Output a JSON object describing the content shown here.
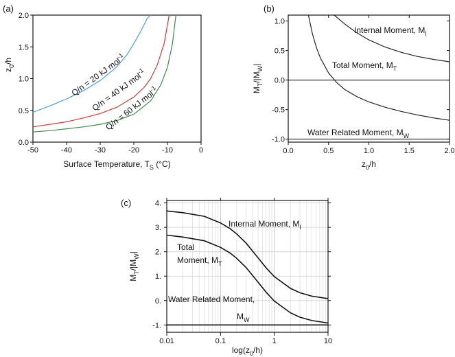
{
  "chart_data": [
    {
      "type": "line",
      "panel_label": "(a)",
      "xlabel": "Surface Temperature, T",
      "xlabel_sub": "S",
      "xlabel_unit": " (°C)",
      "ylabel": "z",
      "ylabel_sub": "0",
      "ylabel_tail": "/h",
      "xlim": [
        -50,
        0
      ],
      "ylim": [
        0,
        2
      ],
      "xticks": [
        -50,
        -40,
        -30,
        -20,
        -10,
        0
      ],
      "xtick_labels": [
        "-50",
        "-40",
        "-30",
        "-20",
        "-10",
        "0"
      ],
      "yticks": [
        0,
        0.5,
        1,
        1.5,
        2
      ],
      "ytick_labels": [
        "0.0",
        "0.5",
        "1.0",
        "1.5",
        "2.0"
      ],
      "series": [
        {
          "name": "Q/n = 20 kJ mol",
          "name_sup": "-1",
          "color": "#4a9fd6",
          "x": [
            -50,
            -45,
            -40,
            -35,
            -30,
            -25,
            -22,
            -20,
            -18,
            -16,
            -15
          ],
          "y": [
            0.47,
            0.57,
            0.68,
            0.81,
            0.97,
            1.19,
            1.38,
            1.55,
            1.74,
            1.95,
            2.0
          ]
        },
        {
          "name": "Q/n = 40 kJ mol",
          "name_sup": "-1",
          "color": "#cc3b3b",
          "x": [
            -50,
            -45,
            -40,
            -35,
            -30,
            -25,
            -20,
            -17,
            -15,
            -13,
            -11,
            -9.5
          ],
          "y": [
            0.24,
            0.28,
            0.32,
            0.38,
            0.45,
            0.55,
            0.71,
            0.86,
            1.0,
            1.22,
            1.55,
            2.0
          ]
        },
        {
          "name": "Q/n = 60 kJ mol",
          "name_sup": "-1",
          "color": "#3f8a4a",
          "x": [
            -50,
            -45,
            -40,
            -35,
            -30,
            -25,
            -20,
            -15,
            -12,
            -10,
            -8.5,
            -7.5
          ],
          "y": [
            0.16,
            0.18,
            0.21,
            0.24,
            0.28,
            0.34,
            0.44,
            0.65,
            0.9,
            1.18,
            1.55,
            2.0
          ]
        }
      ]
    },
    {
      "type": "line",
      "panel_label": "(b)",
      "xlabel": "z",
      "xlabel_sub": "0",
      "xlabel_tail": "/h",
      "ylabel": "M",
      "ylabel_sub": "T",
      "ylabel_mid": "/|M",
      "ylabel_sub2": "W",
      "ylabel_tail": "|",
      "xlim": [
        0,
        2
      ],
      "ylim": [
        -1.05,
        1.1
      ],
      "xticks": [
        0,
        0.5,
        1,
        1.5,
        2
      ],
      "xtick_labels": [
        "0.0",
        "0.5",
        "1.0",
        "1.5",
        "2.0"
      ],
      "yticks": [
        1,
        0.5,
        0,
        -0.5,
        -1
      ],
      "ytick_labels": [
        "1.0",
        "0.5",
        "0.0",
        "-0.5",
        "-1.0"
      ],
      "series": [
        {
          "name": "Internal Moment, M",
          "name_sub": "I",
          "color": "#222222",
          "x": [
            0.57,
            0.7,
            0.85,
            1.0,
            1.2,
            1.4,
            1.6,
            1.8,
            2.0
          ],
          "y": [
            1.1,
            0.95,
            0.8,
            0.68,
            0.56,
            0.47,
            0.4,
            0.35,
            0.31
          ]
        },
        {
          "name": "Total Moment, M",
          "name_sub": "T",
          "color": "#222222",
          "x": [
            0.25,
            0.3,
            0.35,
            0.4,
            0.5,
            0.6,
            0.7,
            0.85,
            1.0,
            1.2,
            1.4,
            1.6,
            1.8,
            2.0
          ],
          "y": [
            1.1,
            0.78,
            0.55,
            0.37,
            0.12,
            -0.04,
            -0.16,
            -0.28,
            -0.37,
            -0.46,
            -0.53,
            -0.59,
            -0.64,
            -0.68
          ]
        },
        {
          "name": "Water Related Moment, M",
          "name_sub": "W",
          "color": "#222222",
          "x": [
            0,
            2
          ],
          "y": [
            -1,
            -1
          ]
        },
        {
          "name": "",
          "color": "#222222",
          "x": [
            0,
            2
          ],
          "y": [
            0,
            0
          ]
        }
      ]
    },
    {
      "type": "line",
      "panel_label": "(c)",
      "xscale": "log",
      "xlabel": "log(z",
      "xlabel_sub": "0",
      "xlabel_tail": "/h)",
      "ylabel": "M",
      "ylabel_sub": "T",
      "ylabel_mid": "/|M",
      "ylabel_sub2": "W",
      "ylabel_tail": "|",
      "xlim": [
        0.01,
        10
      ],
      "ylim": [
        -1.3,
        4.1
      ],
      "xticks": [
        0.01,
        0.1,
        1,
        10
      ],
      "xtick_labels": [
        "0.01",
        "0.1",
        "1",
        "10"
      ],
      "yticks": [
        4,
        3,
        2,
        1,
        0,
        -1
      ],
      "ytick_labels": [
        "4.",
        "3.",
        "2.",
        "1.",
        "0.",
        "-1."
      ],
      "grid": true,
      "series": [
        {
          "name": "Internal Moment, M",
          "name_sub": "I",
          "color": "#111111",
          "x": [
            0.01,
            0.02,
            0.05,
            0.1,
            0.15,
            0.2,
            0.3,
            0.5,
            0.7,
            1,
            2,
            3,
            5,
            10
          ],
          "y": [
            3.67,
            3.6,
            3.45,
            3.18,
            2.95,
            2.73,
            2.35,
            1.75,
            1.35,
            0.98,
            0.5,
            0.32,
            0.18,
            0.08
          ]
        },
        {
          "name": "Total Moment, M",
          "name_sub": "T",
          "color": "#111111",
          "x": [
            0.01,
            0.02,
            0.05,
            0.1,
            0.15,
            0.2,
            0.3,
            0.5,
            0.7,
            1,
            2,
            3,
            5,
            10
          ],
          "y": [
            2.68,
            2.6,
            2.45,
            2.18,
            1.95,
            1.73,
            1.35,
            0.75,
            0.35,
            -0.02,
            -0.5,
            -0.68,
            -0.82,
            -0.92
          ]
        },
        {
          "name": "Water Related Moment, M",
          "name_sub": "W",
          "color": "#111111",
          "x": [
            0.01,
            10
          ],
          "y": [
            -1,
            -1
          ]
        }
      ]
    }
  ]
}
